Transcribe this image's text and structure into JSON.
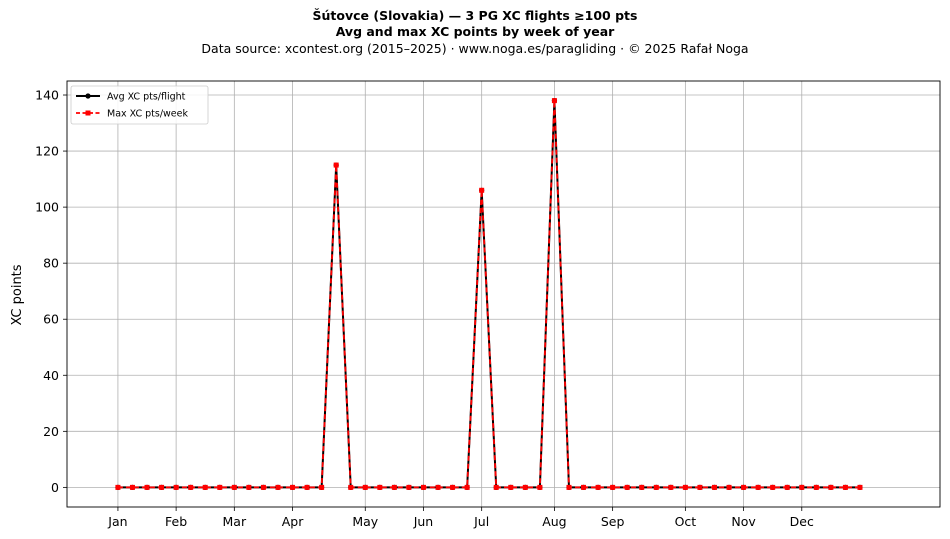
{
  "title": {
    "line1": "Šútovce (Slovakia)  —  3 PG XC flights ≥100 pts",
    "line2": "Avg and max XC points by week of year",
    "source": "Data source: xcontest.org (2015–2025)  ·  www.noga.es/paragliding  ·  © 2025 Rafał Noga"
  },
  "chart_data": {
    "type": "line",
    "title": "Šútovce (Slovakia)  —  3 PG XC flights ≥100 pts",
    "subtitle": "Avg and max XC points by week of year",
    "xlabel": "",
    "ylabel": "XC points",
    "x_unit": "week of year",
    "xlim": [
      -2.5,
      57.5
    ],
    "ylim": [
      -7,
      145
    ],
    "grid": true,
    "legend": "top-left",
    "x": [
      1,
      2,
      3,
      4,
      5,
      6,
      7,
      8,
      9,
      10,
      11,
      12,
      13,
      14,
      15,
      16,
      17,
      18,
      19,
      20,
      21,
      22,
      23,
      24,
      25,
      26,
      27,
      28,
      29,
      30,
      31,
      32,
      33,
      34,
      35,
      36,
      37,
      38,
      39,
      40,
      41,
      42,
      43,
      44,
      45,
      46,
      47,
      48,
      49,
      50,
      51,
      52
    ],
    "month_ticks": [
      {
        "label": "Jan",
        "x": 1
      },
      {
        "label": "Feb",
        "x": 5
      },
      {
        "label": "Mar",
        "x": 9
      },
      {
        "label": "Apr",
        "x": 13
      },
      {
        "label": "May",
        "x": 18
      },
      {
        "label": "Jun",
        "x": 22
      },
      {
        "label": "Jul",
        "x": 26
      },
      {
        "label": "Aug",
        "x": 31
      },
      {
        "label": "Sep",
        "x": 35
      },
      {
        "label": "Oct",
        "x": 40
      },
      {
        "label": "Nov",
        "x": 44
      },
      {
        "label": "Dec",
        "x": 48
      }
    ],
    "y_ticks": [
      0,
      20,
      40,
      60,
      80,
      100,
      120,
      140
    ],
    "series": [
      {
        "name": "Avg XC pts/flight",
        "color": "#000000",
        "style": "solid",
        "marker": "circle",
        "values": [
          0,
          0,
          0,
          0,
          0,
          0,
          0,
          0,
          0,
          0,
          0,
          0,
          0,
          0,
          0,
          115,
          0,
          0,
          0,
          0,
          0,
          0,
          0,
          0,
          0,
          106,
          0,
          0,
          0,
          0,
          138,
          0,
          0,
          0,
          0,
          0,
          0,
          0,
          0,
          0,
          0,
          0,
          0,
          0,
          0,
          0,
          0,
          0,
          0,
          0,
          0,
          0
        ]
      },
      {
        "name": "Max XC pts/week",
        "color": "#ff0000",
        "style": "dashed",
        "marker": "square",
        "values": [
          0,
          0,
          0,
          0,
          0,
          0,
          0,
          0,
          0,
          0,
          0,
          0,
          0,
          0,
          0,
          115,
          0,
          0,
          0,
          0,
          0,
          0,
          0,
          0,
          0,
          106,
          0,
          0,
          0,
          0,
          138,
          0,
          0,
          0,
          0,
          0,
          0,
          0,
          0,
          0,
          0,
          0,
          0,
          0,
          0,
          0,
          0,
          0,
          0,
          0,
          0,
          0
        ]
      }
    ]
  }
}
